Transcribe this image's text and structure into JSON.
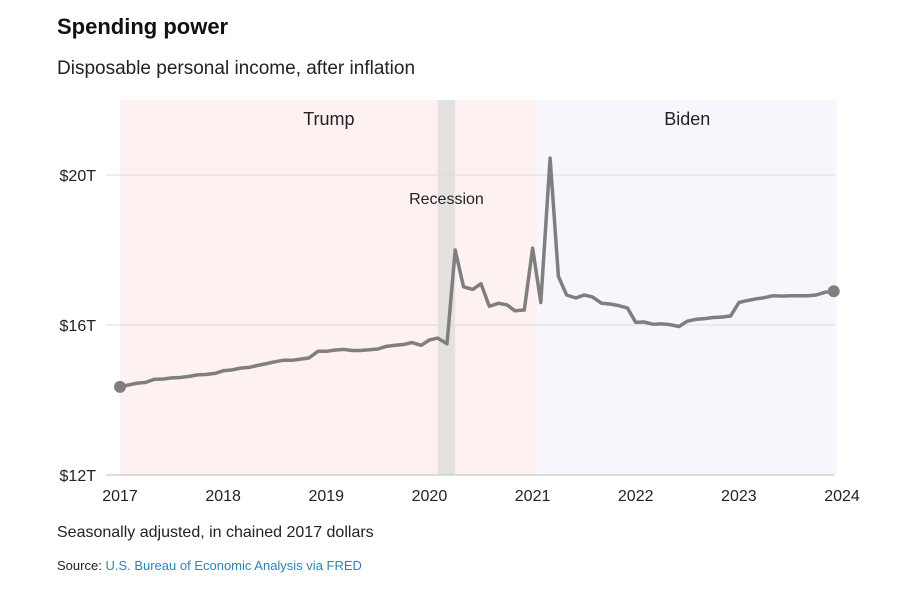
{
  "chart_data": {
    "type": "line",
    "title": "Spending power",
    "subtitle": "Disposable personal income, after inflation",
    "note": "Seasonally adjusted, in chained 2017 dollars",
    "source_label": "Source:",
    "source_text": "U.S. Bureau of Economic Analysis via FRED",
    "ylim": [
      12,
      22
    ],
    "xlim": [
      2017,
      2024
    ],
    "y_ticks": [
      {
        "value": 12,
        "label": "$12T"
      },
      {
        "value": 16,
        "label": "$16T"
      },
      {
        "value": 20,
        "label": "$20T"
      }
    ],
    "x_ticks": [
      {
        "value": 2017,
        "label": "2017"
      },
      {
        "value": 2018,
        "label": "2018"
      },
      {
        "value": 2019,
        "label": "2019"
      },
      {
        "value": 2020,
        "label": "2020"
      },
      {
        "value": 2021,
        "label": "2021"
      },
      {
        "value": 2022,
        "label": "2022"
      },
      {
        "value": 2023,
        "label": "2023"
      },
      {
        "value": 2024,
        "label": "2024"
      }
    ],
    "periods": [
      {
        "label": "Trump",
        "start": 2017.0,
        "end": 2021.05,
        "color": "#fdf1f1"
      },
      {
        "label": "Biden",
        "start": 2021.05,
        "end": 2023.95,
        "color": "#f6f7fd"
      }
    ],
    "recession": {
      "label": "Recession",
      "start": 2020.08,
      "end": 2020.25,
      "color": "#e6e1e1"
    },
    "line_color": "#7f7f7f",
    "series": [
      {
        "x": [
          2017.0,
          2017.08,
          2017.17,
          2017.25,
          2017.33,
          2017.42,
          2017.5,
          2017.58,
          2017.67,
          2017.75,
          2017.83,
          2017.92,
          2018.0,
          2018.08,
          2018.17,
          2018.25,
          2018.33,
          2018.42,
          2018.5,
          2018.58,
          2018.67,
          2018.75,
          2018.83,
          2018.92,
          2019.0,
          2019.08,
          2019.17,
          2019.25,
          2019.33,
          2019.42,
          2019.5,
          2019.58,
          2019.67,
          2019.75,
          2019.83,
          2019.92,
          2020.0,
          2020.08,
          2020.17,
          2020.25,
          2020.33,
          2020.42,
          2020.5,
          2020.58,
          2020.67,
          2020.75,
          2020.83,
          2020.92,
          2021.0,
          2021.08,
          2021.17,
          2021.25,
          2021.33,
          2021.42,
          2021.5,
          2021.58,
          2021.67,
          2021.75,
          2021.83,
          2021.92,
          2022.0,
          2022.08,
          2022.17,
          2022.25,
          2022.33,
          2022.42,
          2022.5,
          2022.58,
          2022.67,
          2022.75,
          2022.83,
          2022.92,
          2023.0,
          2023.08,
          2023.17,
          2023.25,
          2023.33,
          2023.42,
          2023.5,
          2023.58,
          2023.67,
          2023.75,
          2023.83,
          2023.92
        ],
        "values": [
          14.35,
          14.4,
          14.45,
          14.47,
          14.55,
          14.56,
          14.59,
          14.6,
          14.63,
          14.67,
          14.68,
          14.71,
          14.78,
          14.8,
          14.85,
          14.87,
          14.92,
          14.97,
          15.02,
          15.06,
          15.06,
          15.09,
          15.12,
          15.3,
          15.3,
          15.33,
          15.35,
          15.32,
          15.32,
          15.34,
          15.36,
          15.43,
          15.46,
          15.48,
          15.53,
          15.46,
          15.6,
          15.65,
          15.5,
          18.0,
          17.02,
          16.95,
          17.1,
          16.5,
          16.58,
          16.54,
          16.38,
          16.4,
          18.05,
          16.6,
          20.45,
          17.3,
          16.8,
          16.72,
          16.8,
          16.75,
          16.58,
          16.56,
          16.52,
          16.45,
          16.07,
          16.08,
          16.02,
          16.03,
          16.01,
          15.96,
          16.1,
          16.15,
          16.17,
          16.2,
          16.21,
          16.24,
          16.6,
          16.65,
          16.7,
          16.73,
          16.78,
          16.77,
          16.78,
          16.78,
          16.78,
          16.8,
          16.87,
          16.9
        ]
      }
    ]
  }
}
